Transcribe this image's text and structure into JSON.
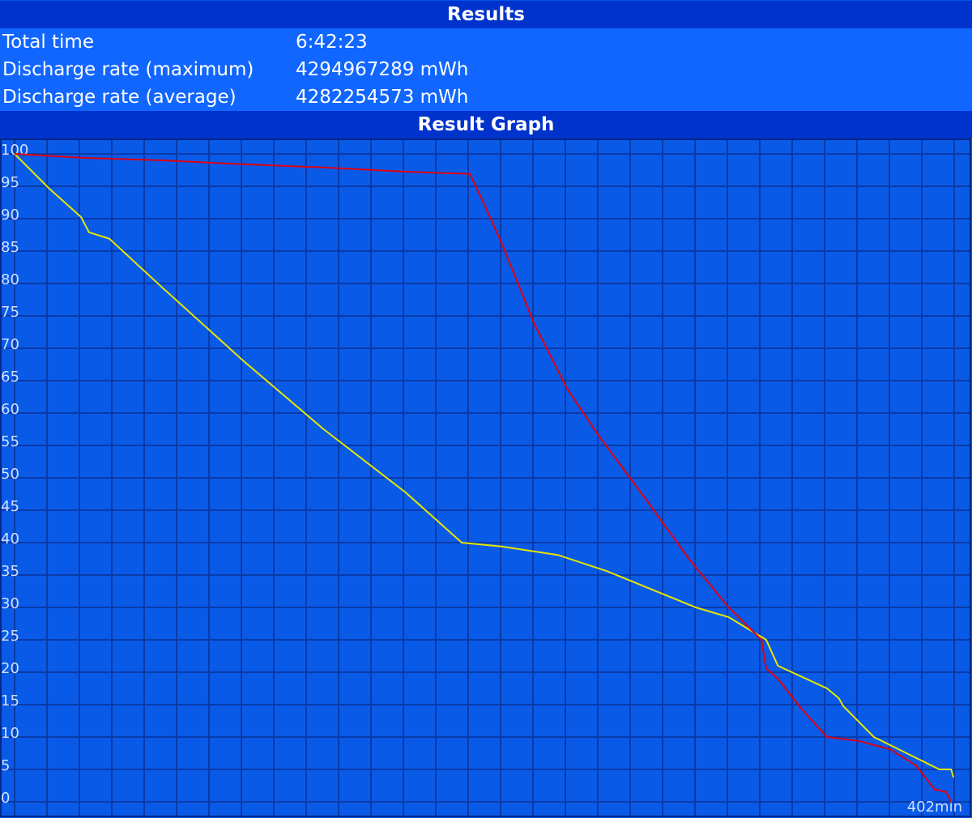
{
  "header": {
    "title": "Results"
  },
  "results": [
    {
      "label": "Total time",
      "value": "6:42:23"
    },
    {
      "label": "Discharge rate (maximum)",
      "value": "4294967289 mWh"
    },
    {
      "label": "Discharge rate (average)",
      "value": "4282254573 mWh"
    }
  ],
  "graph_title": "Result Graph",
  "chart_data": {
    "type": "line",
    "xlim": [
      0,
      402
    ],
    "xticks": [
      {
        "value": 402,
        "label": "402min"
      }
    ],
    "ylim": [
      0,
      100
    ],
    "yticks": [
      0,
      5,
      10,
      15,
      20,
      25,
      30,
      35,
      40,
      45,
      50,
      55,
      60,
      65,
      70,
      75,
      80,
      85,
      90,
      95,
      100
    ],
    "grid": true,
    "series": [
      {
        "color": "#e6e600",
        "x": [
          0,
          14.5,
          28.4,
          31.8,
          40.5,
          63,
          97.6,
          132,
          167,
          191,
          208,
          232,
          253,
          291,
          305,
          321,
          326,
          347,
          352,
          354,
          367,
          381,
          395,
          400,
          401
        ],
        "values": [
          100,
          94.75,
          90.25,
          87.9,
          86.9,
          79.4,
          68.1,
          57.5,
          47.75,
          40,
          39.4,
          38.1,
          35.6,
          30,
          28.5,
          25,
          21,
          17.5,
          16,
          14.75,
          10,
          7.5,
          5,
          5,
          3.75
        ]
      },
      {
        "color": "#e00010",
        "x": [
          0,
          28.4,
          63,
          97.6,
          132,
          167,
          194.5,
          201,
          208,
          222,
          236,
          250,
          270.5,
          288,
          305,
          319,
          321,
          326,
          336,
          347,
          360.5,
          374,
          385,
          393,
          398,
          400
        ],
        "values": [
          100,
          99.4,
          99,
          98.4,
          97.9,
          97.25,
          96.9,
          91.9,
          86.25,
          73.75,
          63.75,
          56.25,
          46.25,
          37.5,
          30,
          25,
          20.6,
          19,
          14.4,
          10,
          9.4,
          8.1,
          5.6,
          1.9,
          1.5,
          0
        ]
      }
    ]
  }
}
